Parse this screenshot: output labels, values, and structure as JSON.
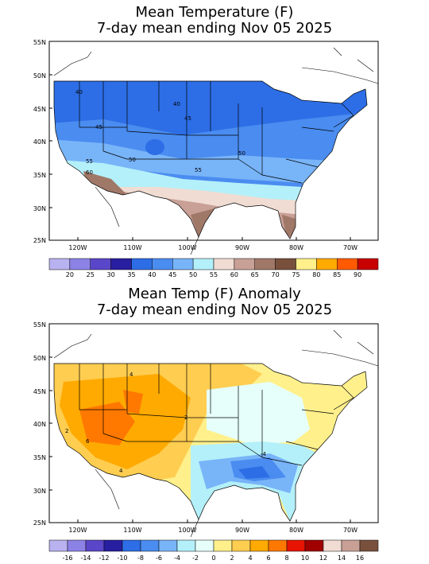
{
  "panels": [
    {
      "title_line1": "Mean Temperature (F)",
      "title_line2": "7-day mean ending Nov 05 2025",
      "lat_labels": [
        "55N",
        "50N",
        "45N",
        "40N",
        "35N",
        "30N",
        "25N"
      ],
      "lon_labels": [
        "120W",
        "110W",
        "100W",
        "90W",
        "80W",
        "70W"
      ],
      "contour_labels": [
        "40",
        "40",
        "45",
        "45",
        "50",
        "50",
        "55",
        "55",
        "60"
      ],
      "legend_labels": [
        "20",
        "25",
        "30",
        "35",
        "40",
        "45",
        "50",
        "55",
        "60",
        "65",
        "70",
        "75",
        "80",
        "85",
        "90"
      ],
      "legend_colors": [
        "#b9b2f0",
        "#8c82e6",
        "#5a46c8",
        "#281ea0",
        "#2d6ee6",
        "#4a8cf0",
        "#78b4f8",
        "#b4f0fa",
        "#f0dcd2",
        "#c8a096",
        "#a07868",
        "#78503c",
        "#fff08c",
        "#ffaa00",
        "#ff5a00",
        "#c80000"
      ]
    },
    {
      "title_line1": "Mean Temp (F) Anomaly",
      "title_line2": "7-day mean ending Nov 05 2025",
      "lat_labels": [
        "55N",
        "50N",
        "45N",
        "40N",
        "35N",
        "30N",
        "25N"
      ],
      "lon_labels": [
        "120W",
        "110W",
        "100W",
        "90W",
        "80W",
        "70W"
      ],
      "contour_labels": [
        "4",
        "2",
        "6",
        "4",
        "2",
        "-4"
      ],
      "legend_labels": [
        "-16",
        "-14",
        "-12",
        "-10",
        "-8",
        "-6",
        "-4",
        "-2",
        "0",
        "2",
        "4",
        "6",
        "8",
        "10",
        "12",
        "14",
        "16"
      ],
      "legend_colors": [
        "#b9b2f0",
        "#8c82e6",
        "#5a46c8",
        "#281ea0",
        "#2d6ee6",
        "#4a8cf0",
        "#78b4f8",
        "#b4f0fa",
        "#e6fffa",
        "#fff08c",
        "#ffcd50",
        "#ffaa00",
        "#ff7800",
        "#e61400",
        "#a00000",
        "#f0dcd2",
        "#c8a096",
        "#78503c"
      ]
    }
  ]
}
